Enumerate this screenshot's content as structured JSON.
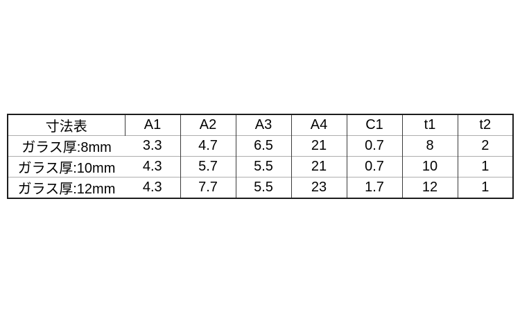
{
  "table": {
    "title": "寸法表",
    "header": [
      "寸法表",
      "A1",
      "A2",
      "A3",
      "A4",
      "C1",
      "t1",
      "t2"
    ],
    "rows": [
      {
        "label": "ガラス厚:8mm",
        "values": [
          "3.3",
          "4.7",
          "6.5",
          "21",
          "0.7",
          "8",
          "2"
        ]
      },
      {
        "label": "ガラス厚:10mm",
        "values": [
          "4.3",
          "5.7",
          "5.5",
          "21",
          "0.7",
          "10",
          "1"
        ]
      },
      {
        "label": "ガラス厚:12mm",
        "values": [
          "4.3",
          "7.7",
          "5.5",
          "23",
          "1.7",
          "12",
          "1"
        ]
      }
    ],
    "colors": {
      "background": "#ffffff",
      "text": "#000000",
      "outer_border": "#1c1c1c",
      "vertical_lines": "#3a3a3a",
      "horizontal_lines": "#adadad"
    }
  }
}
